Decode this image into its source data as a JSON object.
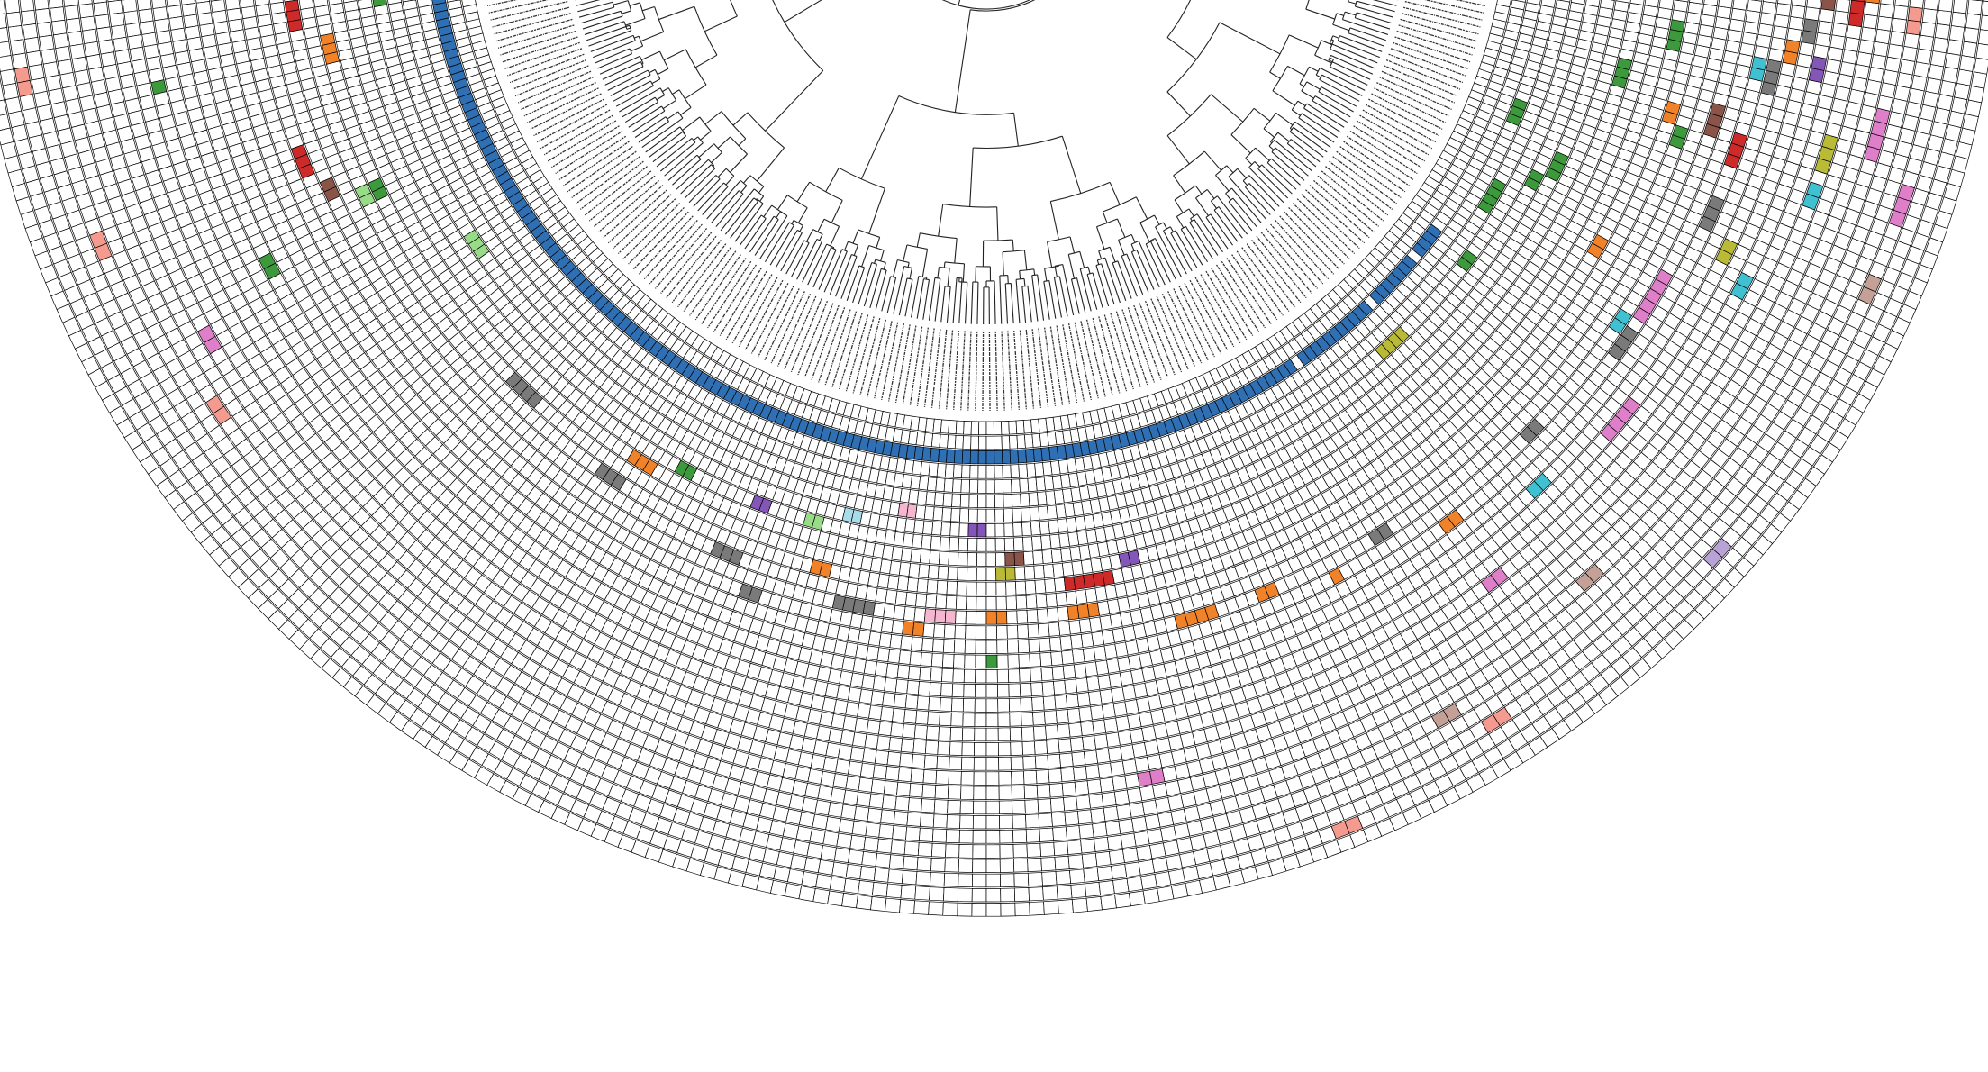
{
  "figure": {
    "type": "circular-phylogenetic-tree-with-trait-rings",
    "leaf_count": 220,
    "ring_count": 34,
    "ring_span_degrees": [
      180,
      360
    ],
    "cell_outline_color": "#000000",
    "label_color": "#333333",
    "palette": {
      "blue": "#2f6fb3",
      "green": "#3c9a3c",
      "light_green": "#98dc88",
      "orange": "#f0822a",
      "gray": "#7a7a7a",
      "red": "#cf2a2a",
      "brown": "#8b5448",
      "purple": "#8456b8",
      "olive": "#b9ba35",
      "cyan": "#3fc1d2",
      "pink": "#df7fc9",
      "light_pink": "#f5b7cf",
      "salmon": "#f59a8f",
      "tan": "#c4a096",
      "light_purple": "#b9a3d6",
      "light_blue": "#a8dce8"
    },
    "filled_segments": [
      {
        "ring": 2,
        "from": 0,
        "to": 150,
        "color": "blue"
      },
      {
        "ring": 2,
        "from": 152,
        "to": 162,
        "color": "blue"
      },
      {
        "ring": 2,
        "from": 164,
        "to": 170,
        "color": "blue"
      },
      {
        "ring": 2,
        "from": 172,
        "to": 175,
        "color": "blue"
      },
      {
        "ring": 4,
        "from": 2,
        "to": 5,
        "color": "green"
      },
      {
        "ring": 4,
        "from": 181,
        "to": 184,
        "color": "green"
      },
      {
        "ring": 5,
        "from": 8,
        "to": 9,
        "color": "green"
      },
      {
        "ring": 5,
        "from": 174,
        "to": 175,
        "color": "green"
      },
      {
        "ring": 6,
        "from": 10,
        "to": 11,
        "color": "green"
      },
      {
        "ring": 6,
        "from": 186,
        "to": 187,
        "color": "green"
      },
      {
        "ring": 7,
        "from": 188,
        "to": 190,
        "color": "green"
      },
      {
        "ring": 8,
        "from": 75,
        "to": 76,
        "color": "green"
      },
      {
        "ring": 3,
        "from": 192,
        "to": 194,
        "color": "green"
      },
      {
        "ring": 9,
        "from": 200,
        "to": 202,
        "color": "green"
      },
      {
        "ring": 12,
        "from": 205,
        "to": 207,
        "color": "green"
      },
      {
        "ring": 14,
        "from": 196,
        "to": 197,
        "color": "green"
      },
      {
        "ring": 16,
        "from": 110,
        "to": 110,
        "color": "green"
      },
      {
        "ring": 17,
        "from": 212,
        "to": 213,
        "color": "green"
      },
      {
        "ring": 19,
        "from": 32,
        "to": 33,
        "color": "green"
      },
      {
        "ring": 10,
        "from": 30,
        "to": 31,
        "color": "green"
      },
      {
        "ring": 22,
        "from": 15,
        "to": 15,
        "color": "green"
      },
      {
        "ring": 6,
        "from": 40,
        "to": 42,
        "color": "light_green"
      },
      {
        "ring": 8,
        "from": 90,
        "to": 91,
        "color": "light_green"
      },
      {
        "ring": 11,
        "from": 30,
        "to": 31,
        "color": "light_green"
      },
      {
        "ring": 12,
        "from": 4,
        "to": 5,
        "color": "light_green"
      },
      {
        "ring": 9,
        "from": 70,
        "to": 72,
        "color": "orange"
      },
      {
        "ring": 10,
        "from": 14,
        "to": 16,
        "color": "orange"
      },
      {
        "ring": 11,
        "from": 92,
        "to": 93,
        "color": "orange"
      },
      {
        "ring": 13,
        "from": 110,
        "to": 111,
        "color": "orange"
      },
      {
        "ring": 13,
        "from": 118,
        "to": 120,
        "color": "orange"
      },
      {
        "ring": 14,
        "from": 102,
        "to": 103,
        "color": "orange"
      },
      {
        "ring": 15,
        "from": 128,
        "to": 131,
        "color": "orange"
      },
      {
        "ring": 15,
        "from": 136,
        "to": 137,
        "color": "orange"
      },
      {
        "ring": 16,
        "from": 143,
        "to": 143,
        "color": "orange"
      },
      {
        "ring": 17,
        "from": 154,
        "to": 155,
        "color": "orange"
      },
      {
        "ring": 12,
        "from": 183,
        "to": 184,
        "color": "orange"
      },
      {
        "ring": 13,
        "from": 198,
        "to": 199,
        "color": "orange"
      },
      {
        "ring": 20,
        "from": 206,
        "to": 207,
        "color": "orange"
      },
      {
        "ring": 25,
        "from": 212,
        "to": 213,
        "color": "orange"
      },
      {
        "ring": 9,
        "from": 5,
        "to": 8,
        "color": "gray"
      },
      {
        "ring": 10,
        "from": 55,
        "to": 58,
        "color": "gray"
      },
      {
        "ring": 11,
        "from": 68,
        "to": 70,
        "color": "gray"
      },
      {
        "ring": 12,
        "from": 82,
        "to": 84,
        "color": "gray"
      },
      {
        "ring": 13,
        "from": 95,
        "to": 98,
        "color": "gray"
      },
      {
        "ring": 14,
        "from": 86,
        "to": 87,
        "color": "gray"
      },
      {
        "ring": 15,
        "from": 148,
        "to": 149,
        "color": "gray"
      },
      {
        "ring": 16,
        "from": 165,
        "to": 166,
        "color": "gray"
      },
      {
        "ring": 17,
        "from": 176,
        "to": 178,
        "color": "gray"
      },
      {
        "ring": 18,
        "from": 190,
        "to": 192,
        "color": "gray"
      },
      {
        "ring": 19,
        "from": 203,
        "to": 205,
        "color": "gray"
      },
      {
        "ring": 21,
        "from": 208,
        "to": 209,
        "color": "gray"
      },
      {
        "ring": 26,
        "from": 214,
        "to": 215,
        "color": "gray"
      },
      {
        "ring": 12,
        "from": 10,
        "to": 12,
        "color": "red"
      },
      {
        "ring": 11,
        "from": 118,
        "to": 122,
        "color": "red"
      },
      {
        "ring": 14,
        "from": 24,
        "to": 26,
        "color": "red"
      },
      {
        "ring": 18,
        "from": 196,
        "to": 198,
        "color": "red"
      },
      {
        "ring": 24,
        "from": 210,
        "to": 212,
        "color": "red"
      },
      {
        "ring": 13,
        "from": 28,
        "to": 29,
        "color": "brown"
      },
      {
        "ring": 9,
        "from": 112,
        "to": 113,
        "color": "brown"
      },
      {
        "ring": 16,
        "from": 198,
        "to": 200,
        "color": "brown"
      },
      {
        "ring": 22,
        "from": 211,
        "to": 212,
        "color": "brown"
      },
      {
        "ring": 7,
        "from": 108,
        "to": 109,
        "color": "purple"
      },
      {
        "ring": 10,
        "from": 124,
        "to": 125,
        "color": "purple"
      },
      {
        "ring": 8,
        "from": 84,
        "to": 85,
        "color": "purple"
      },
      {
        "ring": 22,
        "from": 205,
        "to": 206,
        "color": "purple"
      },
      {
        "ring": 10,
        "from": 111,
        "to": 112,
        "color": "olive"
      },
      {
        "ring": 5,
        "from": 160,
        "to": 163,
        "color": "olive"
      },
      {
        "ring": 24,
        "from": 198,
        "to": 200,
        "color": "olive"
      },
      {
        "ring": 20,
        "from": 188,
        "to": 189,
        "color": "olive"
      },
      {
        "ring": 19,
        "from": 162,
        "to": 163,
        "color": "cyan"
      },
      {
        "ring": 22,
        "from": 186,
        "to": 187,
        "color": "cyan"
      },
      {
        "ring": 24,
        "from": 195,
        "to": 196,
        "color": "cyan"
      },
      {
        "ring": 18,
        "from": 204,
        "to": 205,
        "color": "cyan"
      },
      {
        "ring": 16,
        "from": 178,
        "to": 179,
        "color": "cyan"
      },
      {
        "ring": 17,
        "from": 180,
        "to": 184,
        "color": "pink"
      },
      {
        "ring": 20,
        "from": 170,
        "to": 173,
        "color": "pink"
      },
      {
        "ring": 22,
        "from": 154,
        "to": 155,
        "color": "pink"
      },
      {
        "ring": 25,
        "from": 122,
        "to": 123,
        "color": "pink"
      },
      {
        "ring": 25,
        "from": 35,
        "to": 36,
        "color": "pink"
      },
      {
        "ring": 27,
        "from": 200,
        "to": 203,
        "color": "pink"
      },
      {
        "ring": 30,
        "from": 196,
        "to": 198,
        "color": "pink"
      },
      {
        "ring": 29,
        "from": 214,
        "to": 215,
        "color": "pink"
      },
      {
        "ring": 6,
        "from": 100,
        "to": 101,
        "color": "light_pink"
      },
      {
        "ring": 13,
        "from": 104,
        "to": 106,
        "color": "light_pink"
      },
      {
        "ring": 27,
        "from": 40,
        "to": 41,
        "color": "salmon"
      },
      {
        "ring": 29,
        "from": 25,
        "to": 26,
        "color": "salmon"
      },
      {
        "ring": 31,
        "from": 12,
        "to": 13,
        "color": "salmon"
      },
      {
        "ring": 30,
        "from": 148,
        "to": 149,
        "color": "salmon"
      },
      {
        "ring": 32,
        "from": 135,
        "to": 136,
        "color": "salmon"
      },
      {
        "ring": 28,
        "from": 210,
        "to": 211,
        "color": "salmon"
      },
      {
        "ring": 26,
        "from": 160,
        "to": 161,
        "color": "tan"
      },
      {
        "ring": 28,
        "from": 145,
        "to": 146,
        "color": "tan"
      },
      {
        "ring": 30,
        "from": 190,
        "to": 191,
        "color": "tan"
      },
      {
        "ring": 31,
        "from": 168,
        "to": 169,
        "color": "light_purple"
      },
      {
        "ring": 7,
        "from": 94,
        "to": 95,
        "color": "light_blue"
      }
    ]
  }
}
